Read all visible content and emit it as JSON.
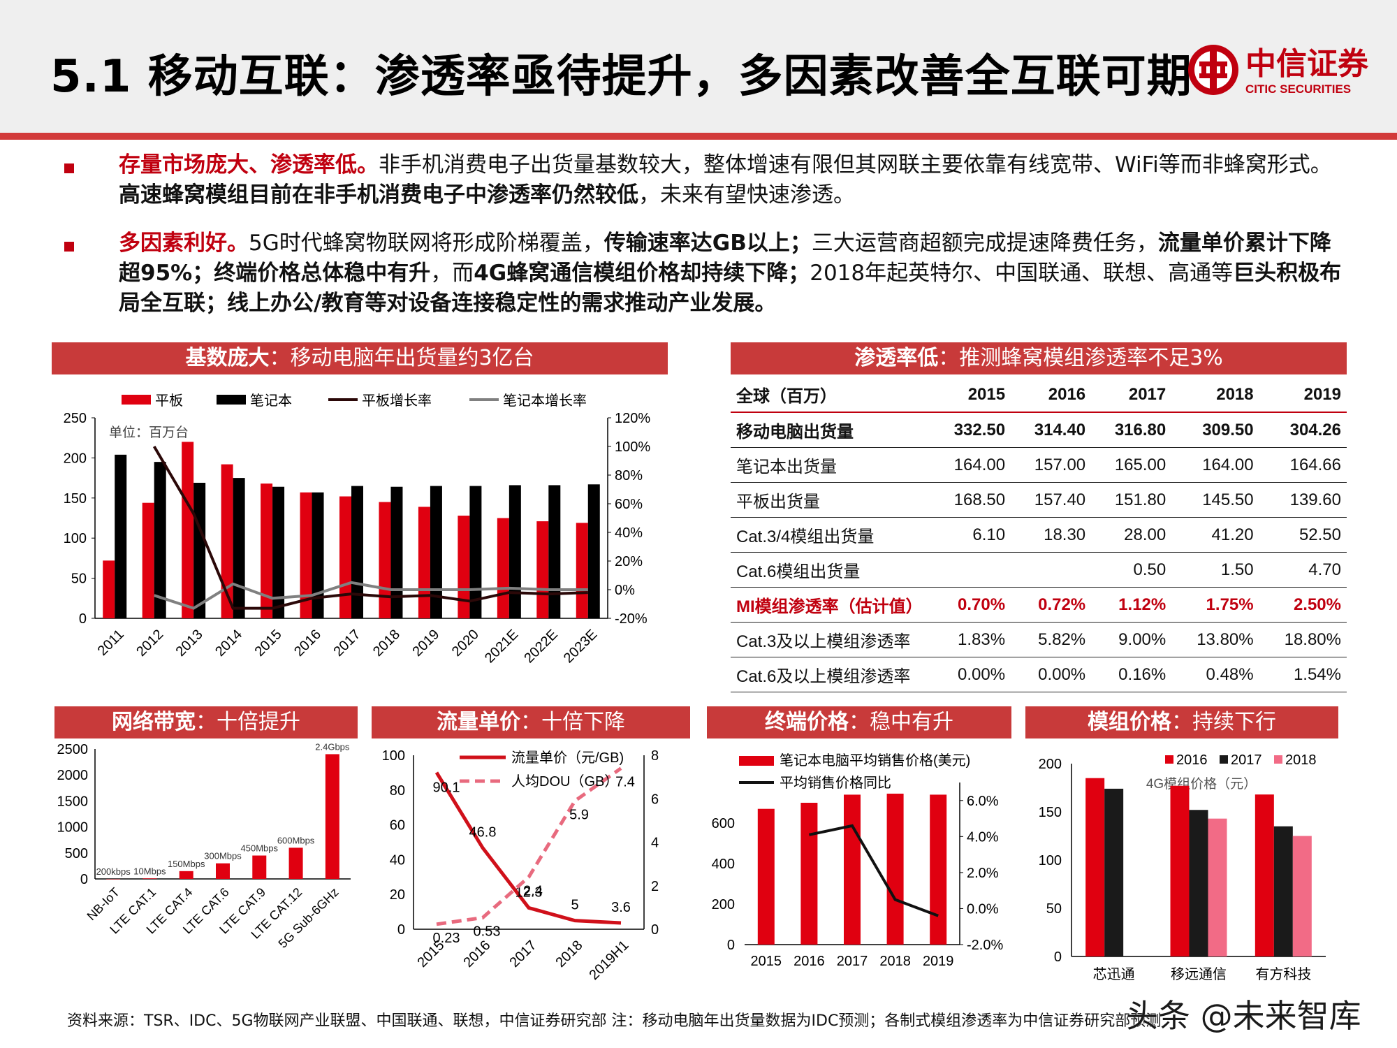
{
  "page": {
    "title": "5.1 移动互联：渗透率亟待提升，多因素改善全互联可期",
    "logo": {
      "text_cn": "中信证券",
      "text_en": "CITIC SECURITIES",
      "accent": "#c0000f"
    }
  },
  "bullets": [
    {
      "runs": [
        {
          "text": "存量市场庞大、渗透率低。",
          "style": "red"
        },
        {
          "text": "非手机消费电子出货量基数较大，整体增速有限但其网联主要依靠有线宽带、WiFi等而非蜂窝形式。",
          "style": "normal"
        },
        {
          "text": "高速蜂窝模组目前在非手机消费电子中渗透率仍然较低",
          "style": "bold"
        },
        {
          "text": "，未来有望快速渗透。",
          "style": "normal"
        }
      ]
    },
    {
      "runs": [
        {
          "text": "多因素利好。",
          "style": "red"
        },
        {
          "text": "5G时代蜂窝物联网将形成阶梯覆盖，",
          "style": "normal"
        },
        {
          "text": "传输速率达GB以上；",
          "style": "bold"
        },
        {
          "text": "三大运营商超额完成提速降费任务，",
          "style": "normal"
        },
        {
          "text": "流量单价累计下降超95%；终端价格总体稳中有升",
          "style": "bold"
        },
        {
          "text": "，而",
          "style": "normal"
        },
        {
          "text": "4G蜂窝通信模组价格却持续下降；",
          "style": "bold"
        },
        {
          "text": "2018年起英特尔、中国联通、联想、高通等",
          "style": "normal"
        },
        {
          "text": "巨头积极布局全互联；线上办公/教育等对设备连接稳定性的需求推动产业发展。",
          "style": "bold"
        }
      ]
    }
  ],
  "panels": {
    "base": {
      "title_bold": "基数庞大",
      "title_rest": "：移动电脑年出货量约3亿台"
    },
    "penetration": {
      "title_bold": "渗透率低",
      "title_rest": "：推测蜂窝模组渗透率不足3%"
    },
    "bandwidth": {
      "title_bold": "网络带宽",
      "title_rest": "：十倍提升"
    },
    "traffic": {
      "title_bold": "流量单价",
      "title_rest": "：十倍下降"
    },
    "terminal": {
      "title_bold": "终端价格",
      "title_rest": "：稳中有升"
    },
    "module": {
      "title_bold": "模组价格",
      "title_rest": "：持续下行"
    }
  },
  "penetration_table": {
    "header": [
      "全球（百万）",
      "2015",
      "2016",
      "2017",
      "2018",
      "2019"
    ],
    "rows": [
      {
        "style": "boldrow",
        "cells": [
          "移动电脑出货量",
          "332.50",
          "314.40",
          "316.80",
          "309.50",
          "304.26"
        ]
      },
      {
        "style": "",
        "cells": [
          "笔记本出货量",
          "164.00",
          "157.00",
          "165.00",
          "164.00",
          "164.66"
        ]
      },
      {
        "style": "",
        "cells": [
          "平板出货量",
          "168.50",
          "157.40",
          "151.80",
          "145.50",
          "139.60"
        ]
      },
      {
        "style": "",
        "cells": [
          "Cat.3/4模组出货量",
          "6.10",
          "18.30",
          "28.00",
          "41.20",
          "52.50"
        ]
      },
      {
        "style": "",
        "cells": [
          "Cat.6模组出货量",
          "",
          "",
          "0.50",
          "1.50",
          "4.70"
        ]
      },
      {
        "style": "redrow",
        "cells": [
          "MI模组渗透率（估计值）",
          "0.70%",
          "0.72%",
          "1.12%",
          "1.75%",
          "2.50%"
        ]
      },
      {
        "style": "",
        "cells": [
          "Cat.3及以上模组渗透率",
          "1.83%",
          "5.82%",
          "9.00%",
          "13.80%",
          "18.80%"
        ]
      },
      {
        "style": "",
        "cells": [
          "Cat.6及以上模组渗透率",
          "0.00%",
          "0.00%",
          "0.16%",
          "0.48%",
          "1.54%"
        ]
      }
    ]
  },
  "chart_data": [
    {
      "id": "shipments",
      "type": "bar",
      "annotation": "单位：百万台",
      "categories": [
        "2011",
        "2012",
        "2013",
        "2014",
        "2015",
        "2016",
        "2017",
        "2018",
        "2019",
        "2020",
        "2021E",
        "2022E",
        "2023E"
      ],
      "ylim": [
        0,
        250
      ],
      "yticks": [
        "0",
        "50",
        "100",
        "150",
        "200",
        "250"
      ],
      "y2lim": [
        -20,
        120
      ],
      "y2ticks": [
        "-20%",
        "0%",
        "20%",
        "40%",
        "60%",
        "80%",
        "100%",
        "120%"
      ],
      "legend": [
        "平板",
        "笔记本",
        "平板增长率",
        "笔记本增长率"
      ],
      "colors": {
        "tablet": "#e00010",
        "notebook": "#000000",
        "tablet_growth": "#2b0808",
        "notebook_growth": "#808080"
      },
      "series": [
        {
          "name": "平板",
          "axis": "left",
          "values": [
            72,
            144,
            220,
            192,
            168,
            157,
            152,
            145,
            139,
            128,
            125,
            121,
            119
          ]
        },
        {
          "name": "笔记本",
          "axis": "left",
          "values": [
            204,
            195,
            169,
            175,
            164,
            157,
            165,
            164,
            165,
            165,
            166,
            166,
            167
          ]
        },
        {
          "name": "平板增长率",
          "axis": "right",
          "values": [
            null,
            100,
            53,
            -13,
            -13,
            -6,
            -3,
            -5,
            -4,
            -8,
            -2,
            -3,
            -2
          ]
        },
        {
          "name": "笔记本增长率",
          "axis": "right",
          "values": [
            null,
            -4,
            -13,
            4,
            -6,
            -4,
            5,
            0,
            0,
            0,
            1,
            0,
            0
          ]
        }
      ]
    },
    {
      "id": "bandwidth",
      "type": "bar",
      "categories": [
        "NB-IoT",
        "LTE CAT.1",
        "LTE CAT.4",
        "LTE CAT.6",
        "LTE CAT.9",
        "LTE CAT.12",
        "5G Sub-6GHz"
      ],
      "values": [
        0.2,
        10,
        150,
        300,
        450,
        600,
        2400
      ],
      "data_labels": [
        "200kbps",
        "10Mbps",
        "150Mbps",
        "300Mbps",
        "450Mbps",
        "600Mbps",
        "2.4Gbps"
      ],
      "ylim": [
        0,
        2500
      ],
      "yticks": [
        "0",
        "500",
        "1000",
        "1500",
        "2000",
        "2500"
      ],
      "color": "#e00010"
    },
    {
      "id": "traffic",
      "type": "line",
      "categories": [
        "2015",
        "2016",
        "2017",
        "2018",
        "2019H1"
      ],
      "ylim": [
        0,
        100
      ],
      "yticks": [
        "0",
        "20",
        "40",
        "60",
        "80",
        "100"
      ],
      "y2lim": [
        0,
        8
      ],
      "y2ticks": [
        "0",
        "2",
        "4",
        "6",
        "8"
      ],
      "legend": [
        "流量单价（元/GB)",
        "人均DOU（GB）"
      ],
      "series": [
        {
          "name": "流量单价（元/GB)",
          "axis": "left",
          "values": [
            90.1,
            46.8,
            12.3,
            5,
            3.6
          ],
          "labels": [
            "90.1",
            "46.8",
            "12.3",
            "5",
            "3.6"
          ],
          "color": "#d0101a",
          "style": "solid"
        },
        {
          "name": "人均DOU（GB）",
          "axis": "right",
          "values": [
            0.23,
            0.53,
            2.4,
            5.9,
            7.4
          ],
          "labels": [
            "0.23",
            "0.53",
            "2.4",
            "5.9",
            "7.4"
          ],
          "color": "#e86a7e",
          "style": "dashed"
        }
      ]
    },
    {
      "id": "terminal",
      "type": "bar",
      "categories": [
        "2015",
        "2016",
        "2017",
        "2018",
        "2019"
      ],
      "ylim": [
        0,
        800
      ],
      "yticks": [
        "0",
        "200",
        "400",
        "600"
      ],
      "y2lim": [
        -2,
        7
      ],
      "y2ticks": [
        "-2.0%",
        "0.0%",
        "2.0%",
        "4.0%",
        "6.0%"
      ],
      "legend": [
        "笔记本电脑平均销售价格(美元)",
        "平均销售价格同比"
      ],
      "series": [
        {
          "name": "笔记本电脑平均销售价格(美元)",
          "axis": "left",
          "values": [
            670,
            700,
            740,
            745,
            740
          ],
          "color": "#e00010"
        },
        {
          "name": "平均销售价格同比",
          "axis": "right",
          "values": [
            null,
            4.1,
            4.6,
            0.5,
            -0.4
          ],
          "color": "#111111"
        }
      ]
    },
    {
      "id": "module_price",
      "type": "bar",
      "annotation": "4G模组价格（元）",
      "categories": [
        "芯迅通",
        "移远通信",
        "有方科技"
      ],
      "ylim": [
        0,
        200
      ],
      "yticks": [
        "0",
        "50",
        "100",
        "150",
        "200"
      ],
      "legend": [
        "2016",
        "2017",
        "2018"
      ],
      "series": [
        {
          "name": "2016",
          "values": [
            185,
            177,
            168
          ],
          "color": "#e00010"
        },
        {
          "name": "2017",
          "values": [
            174,
            152,
            135
          ],
          "color": "#1a1a1a"
        },
        {
          "name": "2018",
          "values": [
            null,
            143,
            125
          ],
          "color": "#f26b86"
        }
      ]
    }
  ],
  "footer": {
    "source": "资料来源：TSR、IDC、5G物联网产业联盟、中国联通、联想，中信证券研究部 注：移动电脑年出货量数据为IDC预测；各制式模组渗透率为中信证券研究部预测"
  },
  "watermark": "头条 @未来智库"
}
